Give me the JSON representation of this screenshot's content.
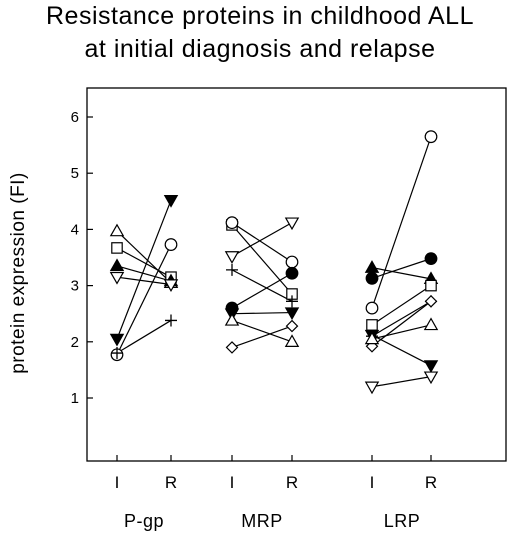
{
  "chart_data": {
    "type": "scatter",
    "title": [
      "Resistance proteins in childhood ALL",
      "at initial diagnosis and relapse"
    ],
    "ylabel": "protein expression (FI)",
    "xlabel": "",
    "ylim": [
      0,
      6.5
    ],
    "yticks": [
      1,
      2,
      3,
      4,
      5,
      6
    ],
    "grid": false,
    "legend": "none",
    "x_categories": [
      "I",
      "R"
    ],
    "groups": [
      {
        "name": "P-gp",
        "pairs": [
          {
            "marker": "triangle-up-open",
            "I": 3.97,
            "R": 3.05
          },
          {
            "marker": "square-open",
            "I": 3.67,
            "R": 3.15
          },
          {
            "marker": "triangle-up-filled",
            "I": 3.35,
            "R": 3.08
          },
          {
            "marker": "triangle-down-open",
            "I": 3.15,
            "R": 3.02
          },
          {
            "marker": "triangle-down-filled",
            "I": 2.05,
            "R": 4.52
          },
          {
            "marker": "circle-open",
            "I": 1.77,
            "R": 3.73
          },
          {
            "marker": "plus",
            "I": 1.8,
            "R": 2.38
          }
        ]
      },
      {
        "name": "MRP",
        "pairs": [
          {
            "marker": "square-open",
            "I": 4.08,
            "R": 2.85
          },
          {
            "marker": "circle-open",
            "I": 4.12,
            "R": 3.42
          },
          {
            "marker": "triangle-down-open",
            "I": 3.52,
            "R": 4.12
          },
          {
            "marker": "plus",
            "I": 3.28,
            "R": 2.72
          },
          {
            "marker": "circle-filled",
            "I": 2.6,
            "R": 3.22
          },
          {
            "marker": "triangle-down-filled",
            "I": 2.5,
            "R": 2.52
          },
          {
            "marker": "triangle-up-open",
            "I": 2.38,
            "R": 2.0
          },
          {
            "marker": "diamond-open",
            "I": 1.9,
            "R": 2.28
          }
        ]
      },
      {
        "name": "LRP",
        "pairs": [
          {
            "marker": "triangle-up-filled",
            "I": 3.32,
            "R": 3.12
          },
          {
            "marker": "circle-filled",
            "I": 3.13,
            "R": 3.48
          },
          {
            "marker": "circle-open",
            "I": 2.6,
            "R": 5.65
          },
          {
            "marker": "square-open",
            "I": 2.3,
            "R": 3.0
          },
          {
            "marker": "triangle-down-filled",
            "I": 2.12,
            "R": 1.58
          },
          {
            "marker": "plus",
            "I": 2.1,
            "R": 2.72
          },
          {
            "marker": "diamond-open",
            "I": 1.92,
            "R": 2.72
          },
          {
            "marker": "triangle-up-open",
            "I": 2.05,
            "R": 2.3
          },
          {
            "marker": "triangle-down-open",
            "I": 1.2,
            "R": 1.38
          }
        ]
      }
    ]
  }
}
